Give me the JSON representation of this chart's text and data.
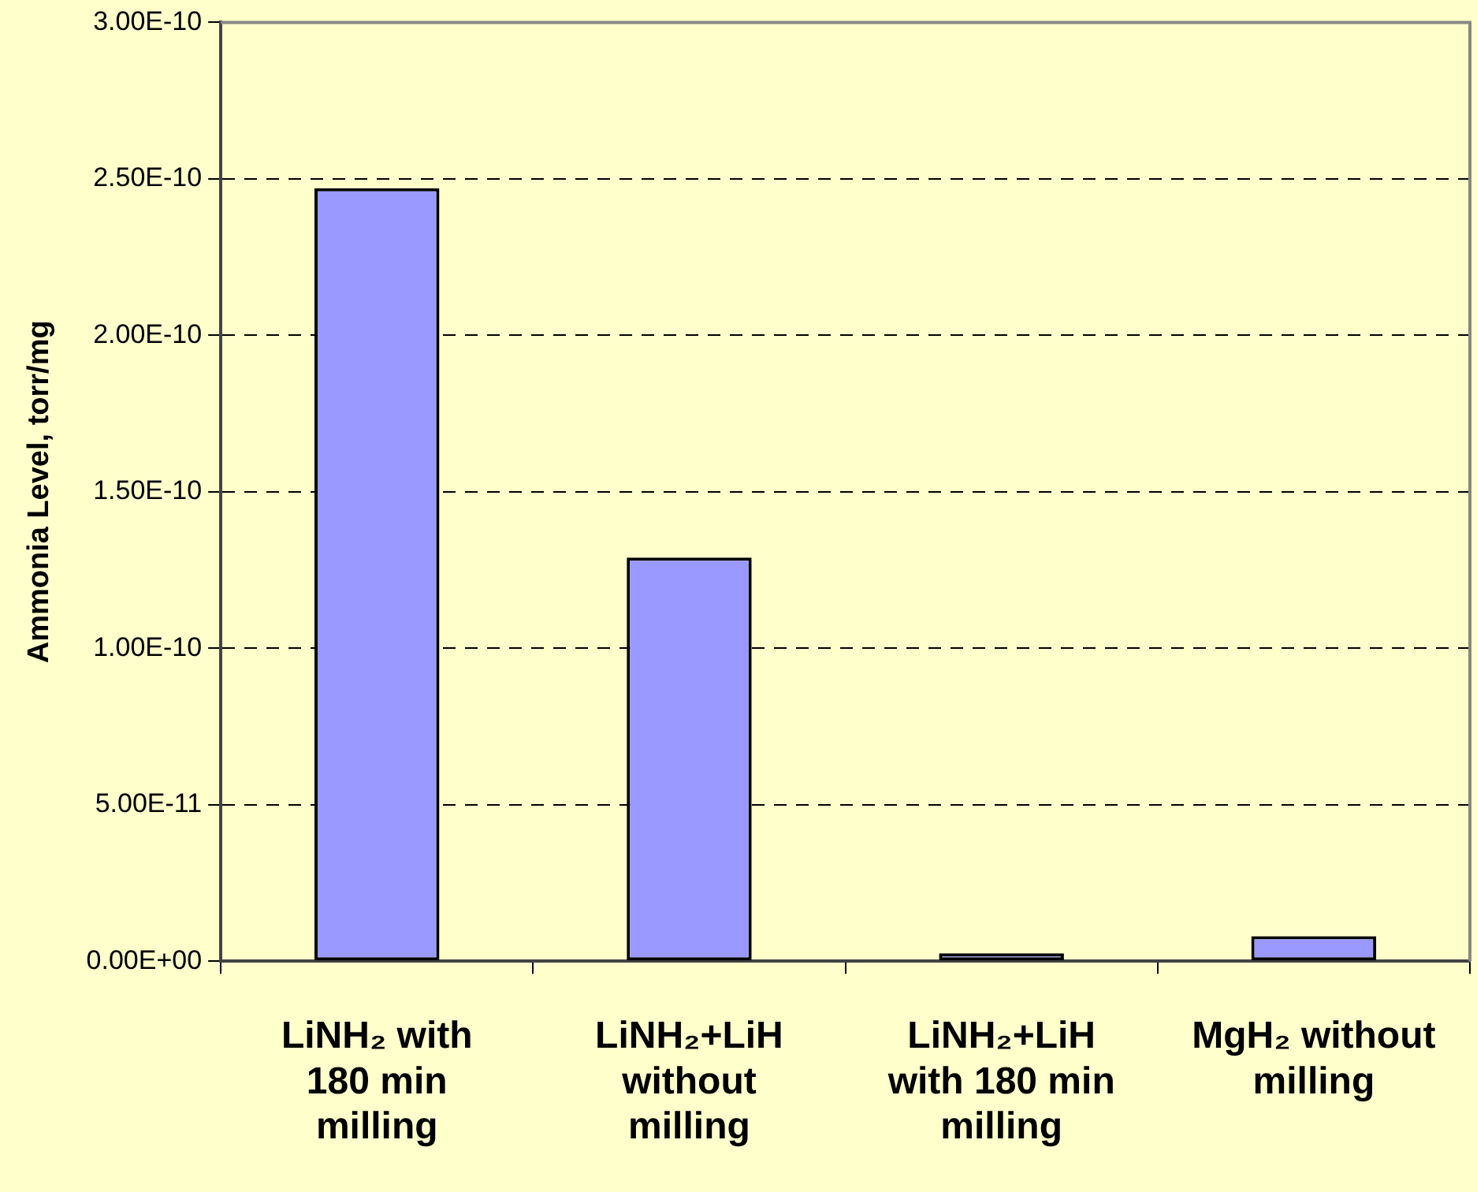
{
  "chart_data": {
    "type": "bar",
    "ylabel": "Ammonia Level, torr/mg",
    "categories": [
      "LiNH₂ with 180 min milling",
      "LiNH₂+LiH without milling",
      "LiNH₂+LiH with 180 min milling",
      "MgH₂ without milling"
    ],
    "values": [
      2.47e-10,
      1.29e-10,
      2.5e-12,
      8e-12
    ],
    "color": "#9999ff",
    "ylim": [
      0,
      3e-10
    ],
    "yticks": [
      {
        "value": 0,
        "label": "0.00E+00"
      },
      {
        "value": 5e-11,
        "label": "5.00E-11"
      },
      {
        "value": 1e-10,
        "label": "1.00E-10"
      },
      {
        "value": 1.5e-10,
        "label": "1.50E-10"
      },
      {
        "value": 2e-10,
        "label": "2.00E-10"
      },
      {
        "value": 2.5e-10,
        "label": "2.50E-10"
      },
      {
        "value": 3e-10,
        "label": "3.00E-10"
      }
    ],
    "grid": "y",
    "legend": false
  }
}
